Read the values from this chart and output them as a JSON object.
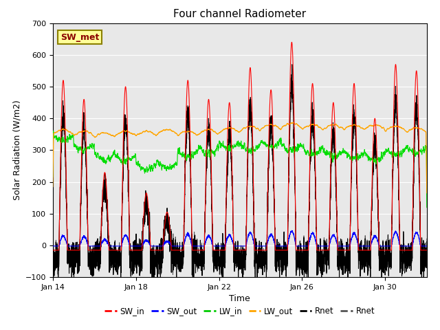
{
  "title": "Four channel Radiometer",
  "xlabel": "Time",
  "ylabel": "Solar Radiation (W/m2)",
  "ylim": [
    -100,
    700
  ],
  "annotation": "SW_met",
  "background_color": "#E8E8E8",
  "x_ticks": [
    "Jan 14",
    "Jan 18",
    "Jan 22",
    "Jan 26",
    "Jan 30"
  ],
  "x_tick_positions": [
    0,
    4,
    8,
    12,
    16
  ],
  "legend_entries": [
    "SW_in",
    "SW_out",
    "LW_in",
    "LW_out",
    "Rnet",
    "Rnet"
  ],
  "legend_colors": [
    "#FF0000",
    "#0000FF",
    "#00CC00",
    "#FFA500",
    "#000000",
    "#555555"
  ],
  "total_days": 18,
  "num_points": 3600,
  "day_amplitudes_sw_in": [
    520,
    460,
    230,
    500,
    165,
    105,
    520,
    460,
    450,
    560,
    490,
    640,
    510,
    450,
    510,
    400,
    570,
    550
  ],
  "sun_start": 0.3,
  "sun_end": 0.7
}
